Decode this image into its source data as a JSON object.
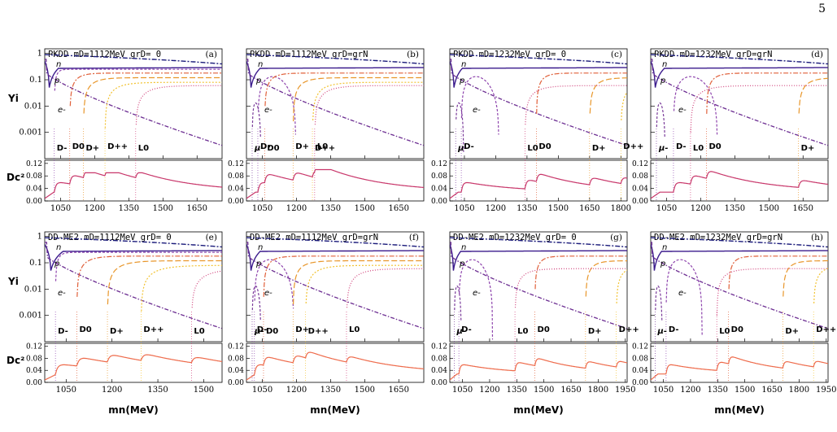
{
  "page_number": "5",
  "colors": {
    "n": "#1a1a7a",
    "p": "#3a1a8c",
    "e": "#6b2c91",
    "mu": "#7a3b9a",
    "Dminus": "#8e44ad",
    "D0": "#e0603a",
    "Dplus": "#e8962a",
    "Dpp": "#f2c230",
    "L0": "#d0407a",
    "Dc2": "#c8366a",
    "Dc2_bottom": "#ee6a4a"
  },
  "labels": {
    "yi": "Yi",
    "dc2": "Dc²",
    "xlabel": "mn(MeV)"
  },
  "chart_data": [
    {
      "type": "line",
      "panel": "(a)",
      "title": "PKDD mD=1112MeV grD= 0",
      "xlim": [
        980,
        1760
      ],
      "xticks": [
        "1050",
        "1200",
        "1350",
        "1500",
        "1650"
      ],
      "ylim_log": [
        0.0001,
        1.5
      ],
      "ytick_labels": [
        "1",
        "0.1",
        "0.01",
        "0.001"
      ],
      "dc2_ylim": [
        0,
        0.13
      ],
      "dc2_ticks": [
        "0.12",
        "0.08",
        "0.04",
        "0.00"
      ],
      "particle_labels": [
        "D-",
        "D0",
        "D+",
        "D++",
        "L0",
        "n",
        "p",
        "e-"
      ],
      "thresholds": {
        "Dminus": 1022,
        "D0": 1090,
        "Dplus": 1150,
        "Dpp": 1245,
        "L0": 1380
      },
      "dc2_peak": 0.09
    },
    {
      "type": "line",
      "panel": "(b)",
      "title": "PKDD mD=1112MeV grD=grN",
      "xlim": [
        980,
        1760
      ],
      "xticks": [
        "1050",
        "1200",
        "1350",
        "1500",
        "1650"
      ],
      "ylim_log": [
        0.0001,
        1.5
      ],
      "ytick_labels": [
        "1",
        "0.1",
        "0.01",
        "0.001"
      ],
      "dc2_ylim": [
        0,
        0.13
      ],
      "dc2_ticks": [
        "0.12",
        "0.08",
        "0.04",
        "0.00"
      ],
      "particle_labels": [
        "μ-",
        "D-",
        "D0",
        "D+",
        "D++",
        "L0",
        "n",
        "p",
        "e-"
      ],
      "thresholds": {
        "mu": 1005,
        "Dminus": 1030,
        "D0": 1060,
        "Dplus": 1185,
        "Dpp": 1270,
        "L0": 1280
      },
      "dc2_peak": 0.1
    },
    {
      "type": "line",
      "panel": "(c)",
      "title": "PKDD mD=1232MeV grD= 0",
      "xlim": [
        980,
        1830
      ],
      "xticks": [
        "1050",
        "1200",
        "1350",
        "1500",
        "1650",
        "1800"
      ],
      "ylim_log": [
        0.0001,
        1.5
      ],
      "ytick_labels": [
        "1",
        "0.1",
        "0.01",
        "0.001"
      ],
      "dc2_ylim": [
        0,
        0.13
      ],
      "dc2_ticks": [
        "0.12",
        "0.08",
        "0.04",
        "0.00"
      ],
      "particle_labels": [
        "μ-",
        "D-",
        "L0",
        "D0",
        "D+",
        "D++",
        "n",
        "p",
        "e-"
      ],
      "thresholds": {
        "mu": 1008,
        "Dminus": 1035,
        "L0": 1340,
        "D0": 1395,
        "Dplus": 1650,
        "Dpp": 1800
      },
      "dc2_peak": 0.09
    },
    {
      "type": "line",
      "panel": "(d)",
      "title": "PKDD mD=1232MeV grD=grN",
      "xlim": [
        980,
        1760
      ],
      "xticks": [
        "1050",
        "1200",
        "1350",
        "1500",
        "1650"
      ],
      "ylim_log": [
        0.0001,
        1.5
      ],
      "ytick_labels": [
        "1",
        "0.1",
        "0.01",
        "0.001"
      ],
      "dc2_ylim": [
        0,
        0.13
      ],
      "dc2_ticks": [
        "0.12",
        "0.08",
        "0.04",
        "0.00"
      ],
      "particle_labels": [
        "μ-",
        "D-",
        "L0",
        "D0",
        "D+",
        "n",
        "p",
        "e-"
      ],
      "thresholds": {
        "mu": 1005,
        "Dminus": 1080,
        "L0": 1155,
        "D0": 1225,
        "Dplus": 1630
      },
      "dc2_peak": 0.1
    },
    {
      "type": "line",
      "panel": "(e)",
      "title": "DD-ME2 mD=1112MeV grD= 0",
      "xlim": [
        980,
        1560
      ],
      "xticks": [
        "1050",
        "1200",
        "1350",
        "1500"
      ],
      "ylim_log": [
        0.0001,
        1.5
      ],
      "ytick_labels": [
        "1",
        "0.1",
        "0.01",
        "0.001"
      ],
      "dc2_ylim": [
        0,
        0.13
      ],
      "dc2_ticks": [
        "0.12",
        "0.08",
        "0.04",
        "0.00"
      ],
      "particle_labels": [
        "D-",
        "D0",
        "D+",
        "D++",
        "L0",
        "n",
        "p",
        "e-"
      ],
      "thresholds": {
        "Dminus": 1015,
        "D0": 1085,
        "Dplus": 1185,
        "Dpp": 1295,
        "L0": 1460
      },
      "dc2_peak": 0.1
    },
    {
      "type": "line",
      "panel": "(f)",
      "title": "DD-ME2 mD=1112MeV grD=grN",
      "xlim": [
        980,
        1760
      ],
      "xticks": [
        "1050",
        "1200",
        "1350",
        "1500",
        "1650"
      ],
      "ylim_log": [
        0.0001,
        1.5
      ],
      "ytick_labels": [
        "1",
        "0.1",
        "0.01",
        "0.001"
      ],
      "dc2_ylim": [
        0,
        0.13
      ],
      "dc2_ticks": [
        "0.12",
        "0.08",
        "0.04",
        "0.00"
      ],
      "particle_labels": [
        "μ-",
        "D-",
        "D0",
        "D+",
        "D++",
        "L0",
        "n",
        "p",
        "e-"
      ],
      "thresholds": {
        "mu": 1005,
        "Dminus": 1015,
        "D0": 1055,
        "Dplus": 1185,
        "Dpp": 1240,
        "L0": 1420
      },
      "dc2_peak": 0.1
    },
    {
      "type": "line",
      "panel": "(g)",
      "title": "DD-ME2 mD=1232MeV grD= 0",
      "xlim": [
        980,
        1960
      ],
      "xticks": [
        "1050",
        "1200",
        "1350",
        "1500",
        "1650",
        "1800",
        "1950"
      ],
      "ylim_log": [
        0.0001,
        1.5
      ],
      "ytick_labels": [
        "1",
        "0.1",
        "0.01",
        "0.001"
      ],
      "dc2_ylim": [
        0,
        0.13
      ],
      "dc2_ticks": [
        "0.12",
        "0.08",
        "0.04",
        "0.00"
      ],
      "particle_labels": [
        "μ-",
        "D-",
        "L0",
        "D0",
        "D+",
        "D++",
        "n",
        "p",
        "e-"
      ],
      "thresholds": {
        "mu": 1005,
        "Dminus": 1030,
        "L0": 1340,
        "D0": 1450,
        "Dplus": 1730,
        "Dpp": 1900
      },
      "dc2_peak": 0.11
    },
    {
      "type": "line",
      "panel": "(h)",
      "title": "DD-ME2 mD=1232MeV grD=grN",
      "xlim": [
        980,
        1960
      ],
      "xticks": [
        "1050",
        "1200",
        "1350",
        "1500",
        "1650",
        "1800",
        "1950"
      ],
      "ylim_log": [
        0.0001,
        1.5
      ],
      "ytick_labels": [
        "1",
        "0.1",
        "0.01",
        "0.001"
      ],
      "dc2_ylim": [
        0,
        0.13
      ],
      "dc2_ticks": [
        "0.12",
        "0.08",
        "0.04",
        "0.00"
      ],
      "particle_labels": [
        "μ-",
        "D-",
        "L0",
        "D0",
        "D+",
        "D++",
        "n",
        "p",
        "e-"
      ],
      "thresholds": {
        "mu": 1005,
        "Dminus": 1065,
        "L0": 1345,
        "D0": 1410,
        "Dplus": 1710,
        "Dpp": 1880
      },
      "dc2_peak": 0.13
    }
  ]
}
